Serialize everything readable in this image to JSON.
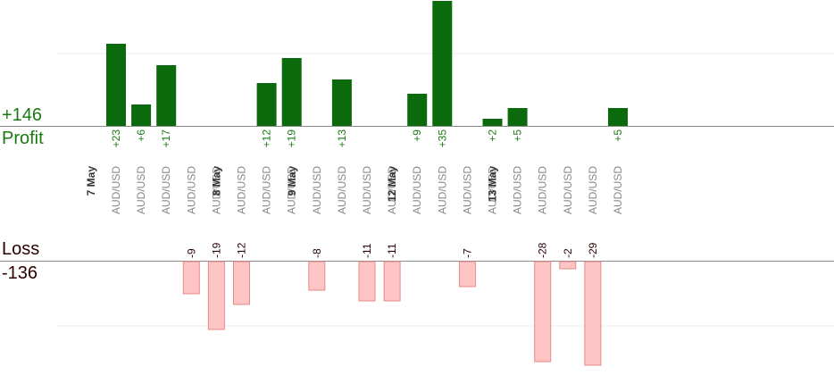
{
  "summary": {
    "profit_total": "+146",
    "profit_label": "Profit",
    "loss_label": "Loss",
    "loss_total": "-136"
  },
  "colors": {
    "profit_text": "#1a7a12",
    "loss_text": "#2a0000",
    "profit_bar": "#0b6a0b",
    "loss_bar_fill": "#ffc4c4",
    "loss_bar_stroke": "#e48a8a",
    "axis": "#888888",
    "grid": "#eeeeee",
    "instrument_text": "#888888",
    "date_text": "#333333"
  },
  "chart_data": {
    "type": "bar",
    "instrument": "AUD/USD",
    "columns": [
      {
        "date": "7 May",
        "profit": 23,
        "loss": null
      },
      {
        "date": null,
        "profit": 6,
        "loss": null
      },
      {
        "date": null,
        "profit": 17,
        "loss": null
      },
      {
        "date": null,
        "profit": null,
        "loss": -9
      },
      {
        "date": null,
        "profit": null,
        "loss": -19
      },
      {
        "date": "8 May",
        "profit": null,
        "loss": -12
      },
      {
        "date": null,
        "profit": 12,
        "loss": null
      },
      {
        "date": null,
        "profit": 19,
        "loss": null
      },
      {
        "date": "9 May",
        "profit": null,
        "loss": -8
      },
      {
        "date": null,
        "profit": 13,
        "loss": null
      },
      {
        "date": null,
        "profit": null,
        "loss": -11
      },
      {
        "date": null,
        "profit": null,
        "loss": -11
      },
      {
        "date": "12 May",
        "profit": 9,
        "loss": null
      },
      {
        "date": null,
        "profit": 35,
        "loss": null
      },
      {
        "date": null,
        "profit": null,
        "loss": -7
      },
      {
        "date": null,
        "profit": 2,
        "loss": null
      },
      {
        "date": "13 May",
        "profit": 5,
        "loss": null
      },
      {
        "date": null,
        "profit": null,
        "loss": -28
      },
      {
        "date": null,
        "profit": null,
        "loss": -2
      },
      {
        "date": null,
        "profit": null,
        "loss": -29
      },
      {
        "date": null,
        "profit": 5,
        "loss": null
      }
    ]
  }
}
